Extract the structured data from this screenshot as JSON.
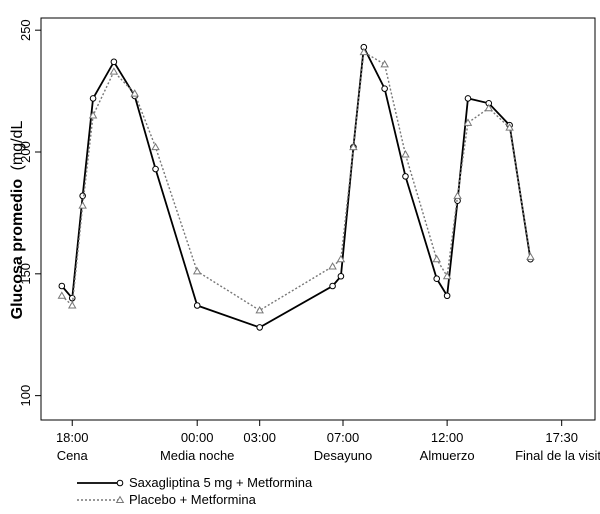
{
  "chart_data": {
    "type": "line",
    "title": "",
    "ylabel_bold": "Glucosa promedio",
    "ylabel_unit": "(mg/dL",
    "xlabel": "",
    "ylim": [
      100,
      250
    ],
    "y_ticks": [
      100,
      150,
      200,
      250
    ],
    "x_ticks_hours": [
      0,
      6,
      9,
      13,
      18,
      23.5
    ],
    "x_tick_time_labels": [
      "18:00",
      "00:00",
      "03:00",
      "07:00",
      "12:00",
      "17:30"
    ],
    "x_tick_event_labels": [
      "Cena",
      "Media noche",
      "Desayuno",
      "Almuerzo",
      "Final de la visita"
    ],
    "x_event_positions_hours": [
      0,
      6,
      13,
      18,
      23.5
    ],
    "grid": false,
    "legend_position": "bottom-left",
    "series": [
      {
        "name": "Saxagliptina 5 mg + Metformina",
        "line_style": "solid",
        "marker": "circle",
        "color": "#000000",
        "x": [
          -0.5,
          0,
          0.5,
          1,
          2,
          3,
          4,
          6,
          9,
          12.5,
          12.9,
          13.5,
          14,
          15,
          16,
          17.5,
          18,
          18.5,
          19,
          20,
          21,
          22,
          23.5
        ],
        "y": [
          145,
          140,
          182,
          222,
          237,
          223,
          193,
          137,
          128,
          145,
          149,
          202,
          243,
          226,
          190,
          148,
          141,
          180,
          222,
          220,
          211,
          156,
          null
        ]
      },
      {
        "name": "Placebo + Metformina",
        "line_style": "dotted",
        "marker": "triangle",
        "color": "#777777",
        "x": [
          -0.5,
          0,
          0.5,
          1,
          2,
          3,
          4,
          6,
          9,
          12.5,
          12.9,
          13.5,
          14,
          15,
          16,
          17.5,
          18,
          18.5,
          19,
          20,
          21,
          22,
          23.5
        ],
        "y": [
          141,
          137,
          178,
          215,
          233,
          224,
          202,
          151,
          135,
          153,
          156,
          202,
          241,
          236,
          199,
          156,
          149,
          182,
          212,
          218,
          210,
          157,
          null
        ]
      }
    ]
  }
}
